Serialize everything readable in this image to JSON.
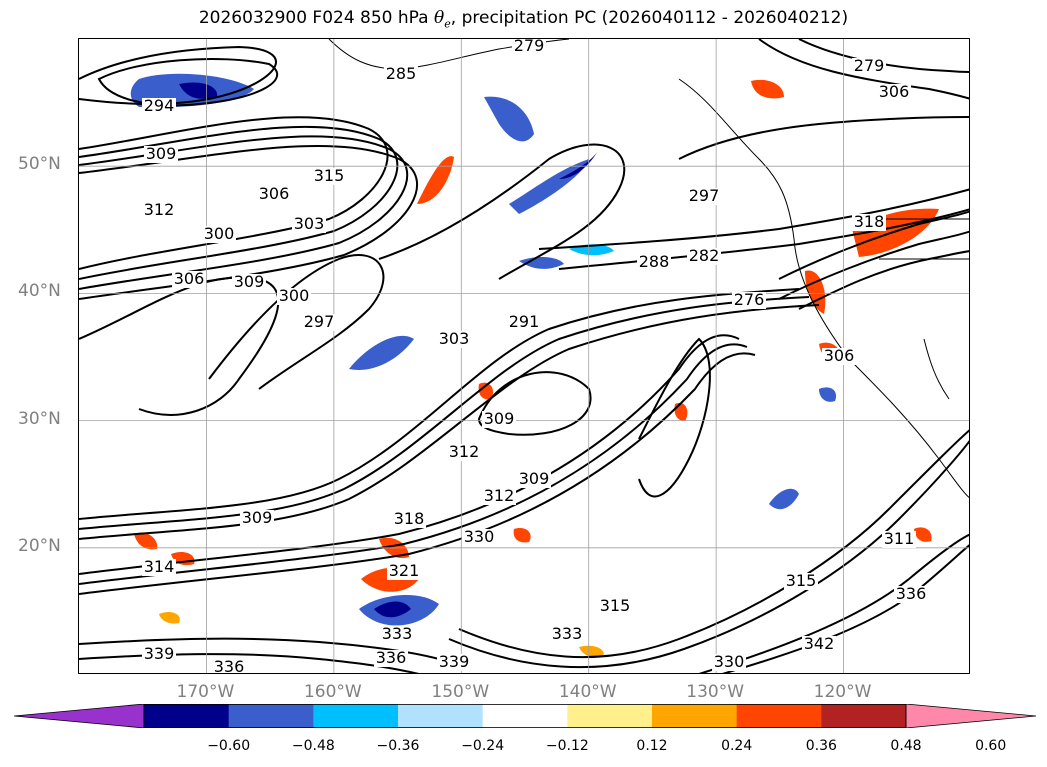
{
  "title": {
    "prefix": "2026032900 F024 850 hPa ",
    "symbol": "θ",
    "symbol_sub": "e",
    "suffix": ", precipitation PC (2026040112 - 2026040212)"
  },
  "map": {
    "lat_labels": [
      {
        "text": "50°N",
        "lat": 50
      },
      {
        "text": "40°N",
        "lat": 40
      },
      {
        "text": "30°N",
        "lat": 30
      },
      {
        "text": "20°N",
        "lat": 20
      }
    ],
    "lon_labels": [
      {
        "text": "170°W",
        "lon": -170
      },
      {
        "text": "160°W",
        "lon": -160
      },
      {
        "text": "150°W",
        "lon": -150
      },
      {
        "text": "140°W",
        "lon": -140
      },
      {
        "text": "130°W",
        "lon": -130
      },
      {
        "text": "120°W",
        "lon": -120
      }
    ],
    "lon_range": [
      -180,
      -110
    ],
    "lat_range": [
      10,
      60
    ],
    "gridline_color": "#a0a0a0",
    "contour_labels": [
      "279",
      "285",
      "294",
      "309",
      "315",
      "312",
      "306",
      "303",
      "300",
      "306",
      "309",
      "300",
      "297",
      "303",
      "291",
      "288",
      "282",
      "297",
      "276",
      "279",
      "306",
      "318",
      "306",
      "309",
      "312",
      "309",
      "318",
      "312",
      "321",
      "330",
      "309",
      "314",
      "333",
      "336",
      "339",
      "336",
      "339",
      "333",
      "315",
      "315",
      "330",
      "342",
      "336",
      "311"
    ]
  },
  "colorbar": {
    "colors": [
      "#9932cc",
      "#00008b",
      "#3a5fcd",
      "#00bfff",
      "#b0e2ff",
      "#ffffff",
      "#fff08c",
      "#ffa500",
      "#ff4500",
      "#b22222",
      "#ff88aa"
    ],
    "tick_labels": [
      "−0.60",
      "−0.48",
      "−0.36",
      "−0.24",
      "−0.12",
      "0.12",
      "0.24",
      "0.36",
      "0.48",
      "0.60"
    ]
  }
}
